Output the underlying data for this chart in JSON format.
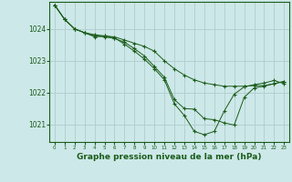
{
  "background_color": "#cde8e8",
  "grid_color": "#b0cccc",
  "line_color": "#1a5c1a",
  "marker_color": "#1a5c1a",
  "xlabel": "Graphe pression niveau de la mer (hPa)",
  "xlabel_fontsize": 6.5,
  "xlabel_color": "#1a5c1a",
  "ytick_color": "#1a5c1a",
  "xtick_color": "#1a5c1a",
  "xlim": [
    -0.5,
    23.5
  ],
  "ylim": [
    1020.45,
    1024.85
  ],
  "yticks": [
    1021,
    1022,
    1023,
    1024
  ],
  "xticks": [
    0,
    1,
    2,
    3,
    4,
    5,
    6,
    7,
    8,
    9,
    10,
    11,
    12,
    13,
    14,
    15,
    16,
    17,
    18,
    19,
    20,
    21,
    22,
    23
  ],
  "series": [
    [
      1024.75,
      1024.3,
      1024.0,
      1023.88,
      1023.82,
      1023.78,
      1023.75,
      1023.65,
      1023.55,
      1023.45,
      1023.3,
      1023.0,
      1022.75,
      1022.55,
      1022.4,
      1022.3,
      1022.25,
      1022.2,
      1022.2,
      1022.2,
      1022.22,
      1022.22,
      1022.28,
      1022.35
    ],
    [
      1024.75,
      1024.3,
      1024.0,
      1023.88,
      1023.78,
      1023.75,
      1023.7,
      1023.58,
      1023.38,
      1023.15,
      1022.82,
      1022.48,
      1021.78,
      1021.5,
      1021.48,
      1021.18,
      1021.15,
      1021.05,
      1020.98,
      1021.85,
      1022.15,
      1022.2,
      1022.28,
      1022.35
    ],
    [
      1024.75,
      1024.3,
      1024.0,
      1023.88,
      1023.75,
      1023.78,
      1023.72,
      1023.52,
      1023.3,
      1023.05,
      1022.75,
      1022.4,
      1021.65,
      1021.28,
      1020.78,
      1020.68,
      1020.78,
      1021.42,
      1021.95,
      1022.18,
      1022.25,
      1022.3,
      1022.38,
      1022.28
    ]
  ]
}
